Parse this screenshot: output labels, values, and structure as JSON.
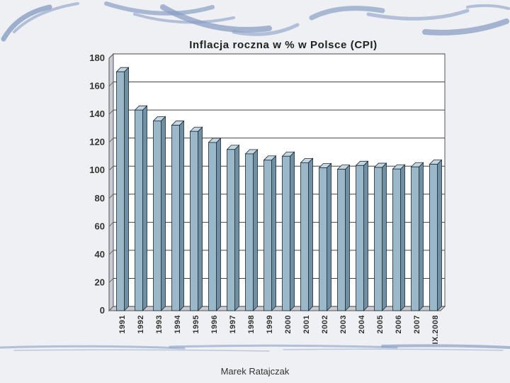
{
  "slide": {
    "footer": "Marek Ratajczak"
  },
  "colors": {
    "bar_front": "#9bb8c9",
    "bar_side": "#6f8fa3",
    "bar_top": "#c4d6e1",
    "bar_outline": "#1c2a35",
    "plot_bg": "#ffffff",
    "wall": "#c8ccd2",
    "accent_swirl": "#8a9fc4"
  },
  "chart_data": {
    "type": "bar",
    "title": "Inflacja roczna w % w Polsce (CPI)",
    "xlabel": "",
    "ylabel": "",
    "ylim": [
      0,
      180
    ],
    "yticks": [
      0,
      20,
      40,
      60,
      80,
      100,
      120,
      140,
      160,
      180
    ],
    "grid": true,
    "categories": [
      "1991",
      "1992",
      "1993",
      "1994",
      "1995",
      "1996",
      "1997",
      "1998",
      "1999",
      "2000",
      "2001",
      "2002",
      "2003",
      "2004",
      "2005",
      "2006",
      "2007",
      "IX.2008"
    ],
    "values": [
      170.3,
      143.0,
      135.3,
      132.2,
      127.8,
      119.9,
      114.9,
      111.8,
      107.3,
      110.1,
      105.5,
      101.9,
      100.8,
      103.5,
      102.1,
      101.0,
      102.5,
      104.4
    ]
  }
}
